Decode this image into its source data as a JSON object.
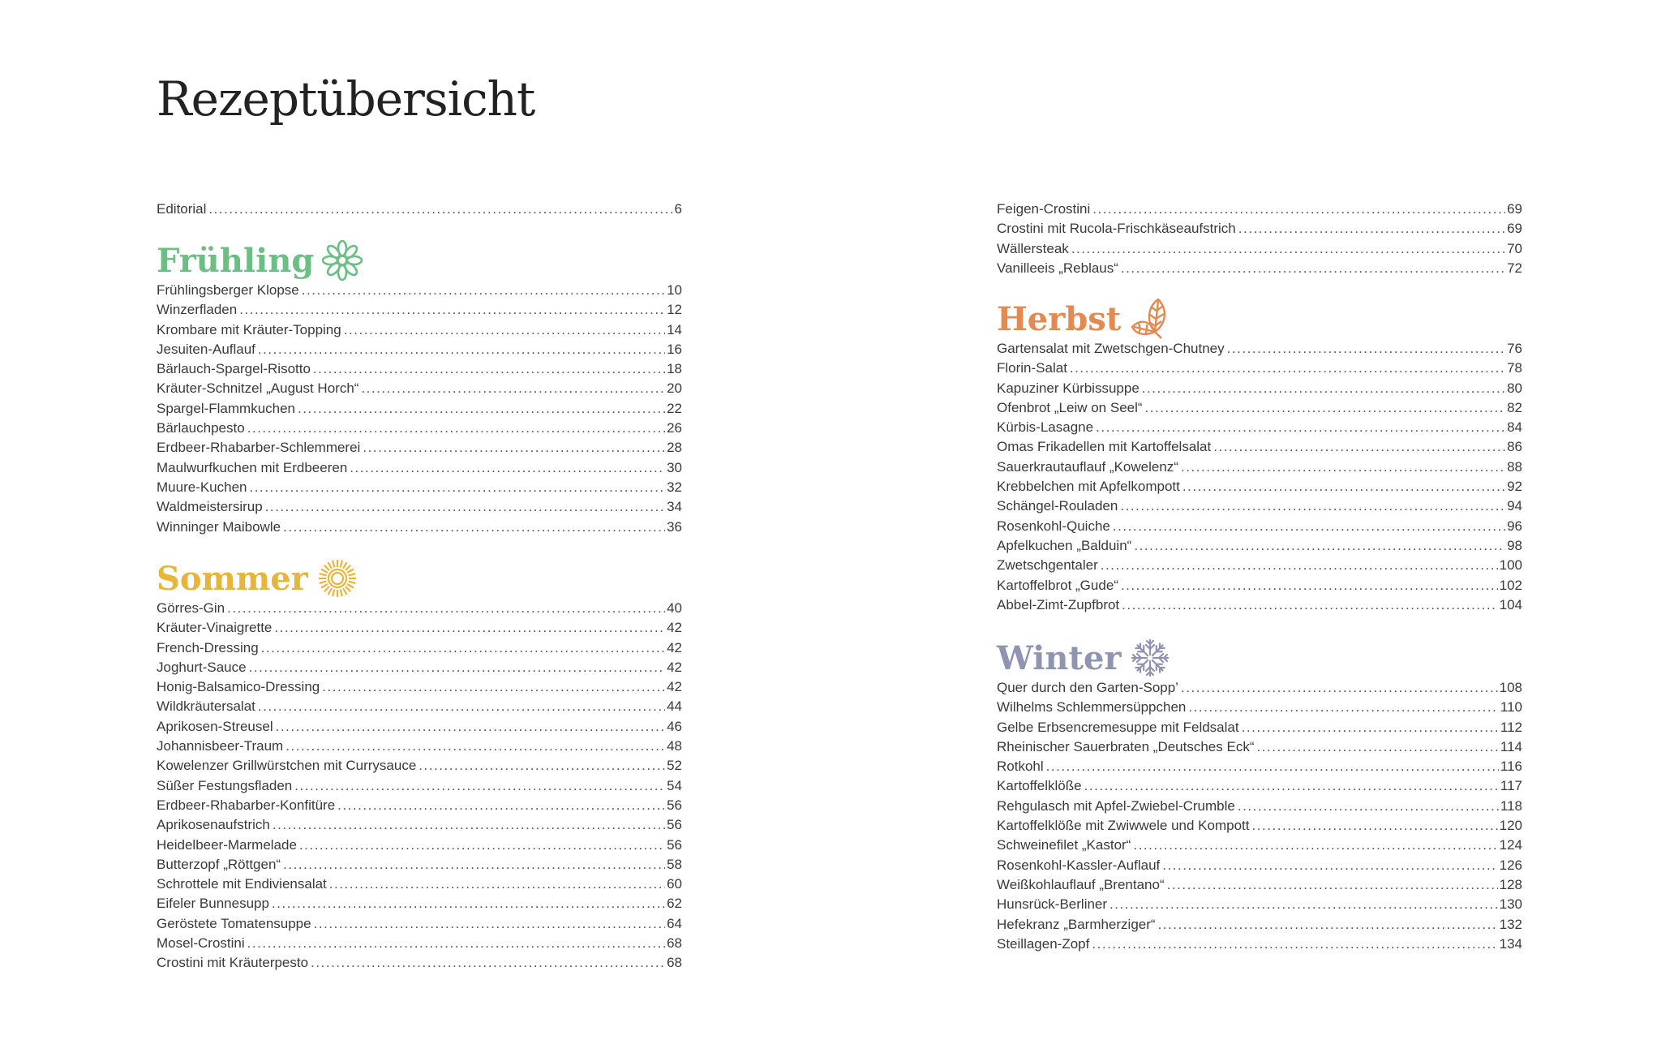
{
  "title": "Rezeptübersicht",
  "colors": {
    "fruehling": "#6cbf84",
    "sommer": "#e7b53a",
    "herbst": "#e38a52",
    "winter": "#8f94b3",
    "text": "#3a3a3a"
  },
  "editorial": {
    "name": "Editorial",
    "page": "6"
  },
  "sections": {
    "fruehling": {
      "heading": "Frühling",
      "icon": "flower-icon",
      "items": [
        {
          "name": "Frühlingsberger Klopse",
          "page": "10"
        },
        {
          "name": "Winzerfladen",
          "page": "12"
        },
        {
          "name": "Krombare mit Kräuter-Topping",
          "page": "14"
        },
        {
          "name": "Jesuiten-Auflauf",
          "page": "16"
        },
        {
          "name": "Bärlauch-Spargel-Risotto",
          "page": "18"
        },
        {
          "name": "Kräuter-Schnitzel „August Horch“",
          "page": "20"
        },
        {
          "name": "Spargel-Flammkuchen",
          "page": "22"
        },
        {
          "name": "Bärlauchpesto",
          "page": "26"
        },
        {
          "name": "Erdbeer-Rhabarber-Schlemmerei",
          "page": "28"
        },
        {
          "name": "Maulwurfkuchen mit Erdbeeren",
          "page": "30"
        },
        {
          "name": "Muure-Kuchen",
          "page": "32"
        },
        {
          "name": "Waldmeistersirup",
          "page": "34"
        },
        {
          "name": "Winninger Maibowle",
          "page": "36"
        }
      ]
    },
    "sommer": {
      "heading": "Sommer",
      "icon": "sun-icon",
      "items": [
        {
          "name": "Görres-Gin",
          "page": "40"
        },
        {
          "name": "Kräuter-Vinaigrette",
          "page": "42"
        },
        {
          "name": "French-Dressing",
          "page": "42"
        },
        {
          "name": "Joghurt-Sauce",
          "page": "42"
        },
        {
          "name": "Honig-Balsamico-Dressing",
          "page": "42"
        },
        {
          "name": "Wildkräutersalat",
          "page": "44"
        },
        {
          "name": "Aprikosen-Streusel",
          "page": "46"
        },
        {
          "name": "Johannisbeer-Traum",
          "page": "48"
        },
        {
          "name": "Kowelenzer Grillwürstchen mit Currysauce",
          "page": "52"
        },
        {
          "name": "Süßer Festungsfladen",
          "page": "54"
        },
        {
          "name": "Erdbeer-Rhabarber-Konfitüre",
          "page": "56"
        },
        {
          "name": "Aprikosenaufstrich",
          "page": "56"
        },
        {
          "name": "Heidelbeer-Marmelade",
          "page": "56"
        },
        {
          "name": "Butterzopf „Röttgen“",
          "page": "58"
        },
        {
          "name": "Schrottele mit Endiviensalat",
          "page": "60"
        },
        {
          "name": "Eifeler Bunnesupp",
          "page": "62"
        },
        {
          "name": "Geröstete Tomatensuppe",
          "page": "64"
        },
        {
          "name": "Mosel-Crostini",
          "page": "68"
        },
        {
          "name": "Crostini mit Kräuterpesto",
          "page": "68"
        }
      ]
    },
    "sommer_cont": {
      "items": [
        {
          "name": "Feigen-Crostini",
          "page": "69"
        },
        {
          "name": "Crostini mit Rucola-Frischkäseaufstrich",
          "page": "69"
        },
        {
          "name": "Wällersteak",
          "page": "70"
        },
        {
          "name": "Vanilleeis „Reblaus“",
          "page": "72"
        }
      ]
    },
    "herbst": {
      "heading": "Herbst",
      "icon": "leaves-icon",
      "items": [
        {
          "name": "Gartensalat mit Zwetschgen-Chutney",
          "page": "76"
        },
        {
          "name": "Florin-Salat",
          "page": "78"
        },
        {
          "name": "Kapuziner Kürbissuppe",
          "page": "80"
        },
        {
          "name": "Ofenbrot „Leiw on Seel“",
          "page": "82"
        },
        {
          "name": "Kürbis-Lasagne",
          "page": "84"
        },
        {
          "name": "Omas Frikadellen mit Kartoffelsalat",
          "page": "86"
        },
        {
          "name": "Sauerkrautauflauf „Kowelenz“",
          "page": "88"
        },
        {
          "name": "Krebbelchen mit Apfelkompott",
          "page": "92"
        },
        {
          "name": "Schängel-Rouladen",
          "page": "94"
        },
        {
          "name": "Rosenkohl-Quiche",
          "page": "96"
        },
        {
          "name": "Apfelkuchen „Balduin“",
          "page": "98"
        },
        {
          "name": "Zwetschgentaler",
          "page": "100"
        },
        {
          "name": "Kartoffelbrot „Gude“",
          "page": "102"
        },
        {
          "name": "Abbel-Zimt-Zupfbrot",
          "page": "104"
        }
      ]
    },
    "winter": {
      "heading": "Winter",
      "icon": "snowflake-icon",
      "items": [
        {
          "name": "Quer durch den Garten-Sopp’",
          "page": "108"
        },
        {
          "name": "Wilhelms Schlemmersüppchen",
          "page": "110"
        },
        {
          "name": "Gelbe Erbsencremesuppe mit Feldsalat",
          "page": "112"
        },
        {
          "name": "Rheinischer Sauerbraten „Deutsches Eck“",
          "page": "114"
        },
        {
          "name": "Rotkohl",
          "page": "116"
        },
        {
          "name": "Kartoffelklöße",
          "page": "117"
        },
        {
          "name": "Rehgulasch mit Apfel-Zwiebel-Crumble",
          "page": "118"
        },
        {
          "name": "Kartoffelklöße mit Zwiwwele und Kompott",
          "page": "120"
        },
        {
          "name": "Schweinefilet „Kastor“",
          "page": "124"
        },
        {
          "name": "Rosenkohl-Kassler-Auflauf",
          "page": "126"
        },
        {
          "name": "Weißkohlauflauf „Brentano“",
          "page": "128"
        },
        {
          "name": "Hunsrück-Berliner",
          "page": "130"
        },
        {
          "name": "Hefekranz „Barmherziger“",
          "page": "132"
        },
        {
          "name": "Steillagen-Zopf",
          "page": "134"
        }
      ]
    }
  }
}
